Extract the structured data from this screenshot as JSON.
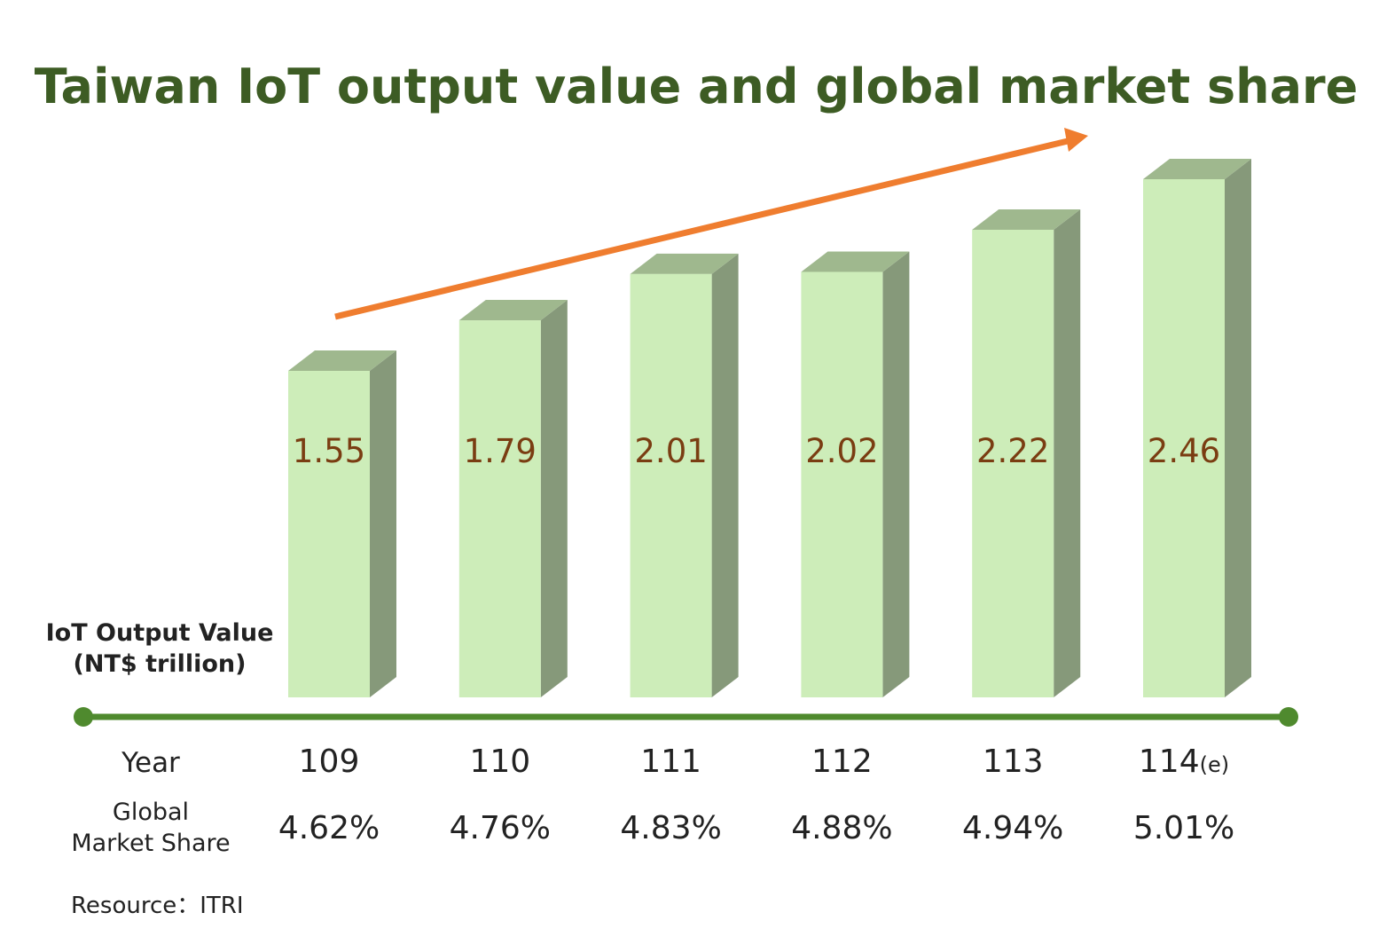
{
  "title": "Taiwan IoT output value and global market share",
  "labels": {
    "value_line1": "IoT Output Value",
    "value_line2": "(NT$ trillion)",
    "year": "Year",
    "share_line1": "Global",
    "share_line2": "Market Share"
  },
  "source": "Resource：ITRI",
  "colors": {
    "title": "#3d5c24",
    "bar_front": "#cdedb9",
    "bar_side": "#86997a",
    "bar_top": "#9fb88e",
    "value_label": "#7a3d12",
    "axis_line": "#4f8a2e",
    "trend_arrow": "#ef7d2f",
    "text": "#222222"
  },
  "chart_data": {
    "type": "bar",
    "style": "3d-column",
    "categories": [
      "109",
      "110",
      "111",
      "112",
      "113",
      "114"
    ],
    "category_suffixes": [
      "",
      "",
      "",
      "",
      "",
      "(e)"
    ],
    "values": [
      1.55,
      1.79,
      2.01,
      2.02,
      2.22,
      2.46
    ],
    "value_labels": [
      "1.55",
      "1.79",
      "2.01",
      "2.02",
      "2.22",
      "2.46"
    ],
    "market_share": [
      "4.62%",
      "4.76%",
      "4.83%",
      "4.88%",
      "4.94%",
      "5.01%"
    ],
    "trend": "increasing",
    "grid": false,
    "legend": "none"
  }
}
